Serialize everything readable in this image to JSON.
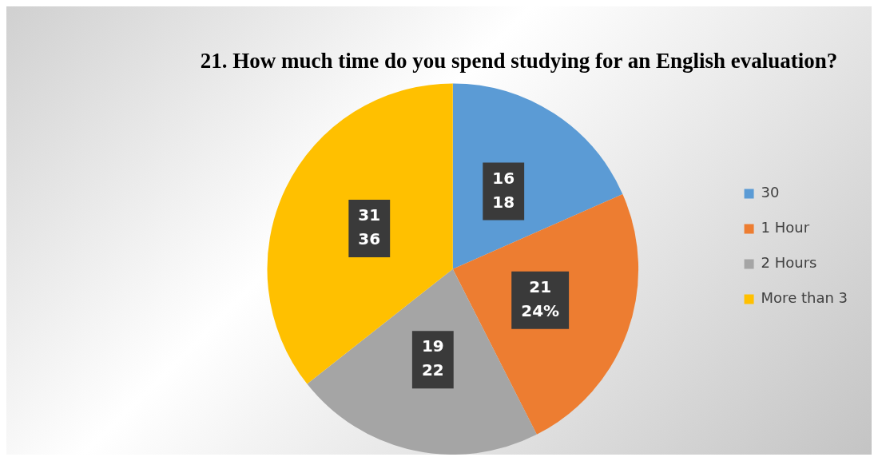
{
  "chart_data": {
    "type": "pie",
    "title": "21. How much time do you spend studying for an English evaluation?",
    "categories": [
      "30",
      "1 Hour",
      "2 Hours",
      "More than 3"
    ],
    "values": [
      16,
      21,
      19,
      31
    ],
    "colors": [
      "#5b9bd5",
      "#ed7d31",
      "#a5a5a5",
      "#ffc000"
    ],
    "value_labels": [
      "16\n18",
      "21\n24%",
      "19\n22",
      "31\n36"
    ],
    "legend": "right"
  }
}
